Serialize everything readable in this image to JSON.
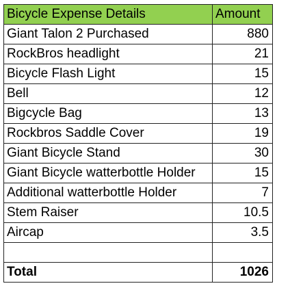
{
  "sheet": {
    "header": {
      "item": "Bicycle Expense Details",
      "amount": "Amount",
      "color": "#92d050"
    },
    "rows": [
      {
        "item": "Giant Talon 2 Purchased",
        "amount": "880"
      },
      {
        "item": "RockBros headlight",
        "amount": "21"
      },
      {
        "item": "Bicycle Flash Light",
        "amount": "15"
      },
      {
        "item": "Bell",
        "amount": "12"
      },
      {
        "item": "Bigcycle Bag",
        "amount": "13"
      },
      {
        "item": "Rockbros Saddle Cover",
        "amount": "19"
      },
      {
        "item": "Giant Bicycle Stand",
        "amount": "30"
      },
      {
        "item": "Giant Bicycle watterbottle Holder",
        "amount": "15"
      },
      {
        "item": "Additional watterbottle Holder",
        "amount": "7"
      },
      {
        "item": "Stem Raiser",
        "amount": "10.5"
      },
      {
        "item": "Aircap",
        "amount": "3.5"
      },
      {
        "item": "",
        "amount": ""
      }
    ],
    "total": {
      "item": "Total",
      "amount": "1026"
    }
  }
}
